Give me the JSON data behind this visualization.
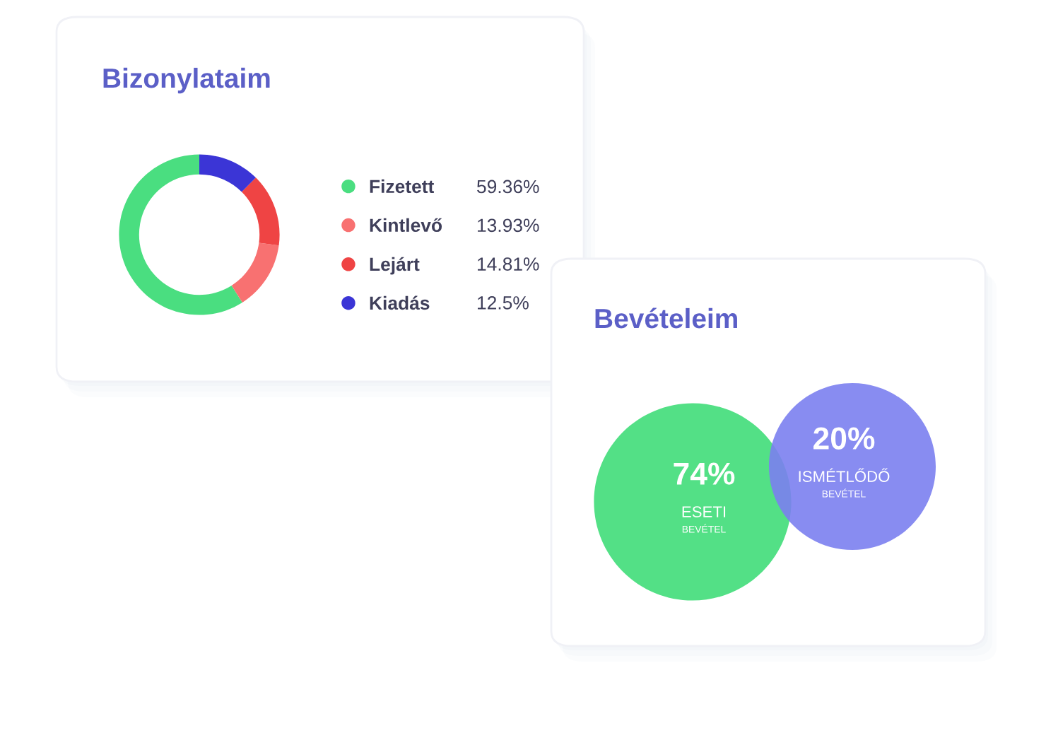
{
  "chart_data": [
    {
      "type": "donut",
      "title": "Bizonylataim",
      "categories": [
        "Fizetett",
        "Kintlevő",
        "Lejárt",
        "Kiadás"
      ],
      "values": [
        59.36,
        13.93,
        14.81,
        12.5
      ],
      "colors": [
        "#4ade80",
        "#f87171",
        "#ef4444",
        "#3b35d6"
      ],
      "value_labels": [
        "59.36%",
        "13.93%",
        "14.81%",
        "12.5%"
      ],
      "legend": "right"
    },
    {
      "type": "other",
      "title": "Bevételeim",
      "categories": [
        "ESETI",
        "ISMÉTLŐDŐ"
      ],
      "values": [
        74,
        20
      ],
      "colors": [
        "#4ade80",
        "#7b7ff0"
      ],
      "value_labels": [
        "74%",
        "20%"
      ],
      "annotations": [
        "BEVÉTEL",
        "BEVÉTEL"
      ]
    }
  ]
}
